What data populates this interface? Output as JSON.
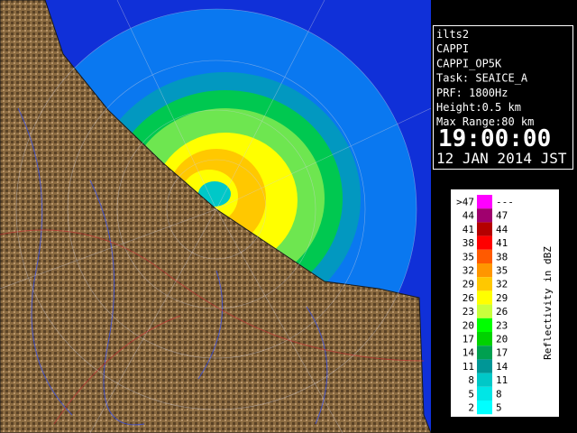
{
  "info": {
    "lines": [
      "ilts2",
      "CAPPI",
      "CAPPI_OP5K",
      "Task: SEAICE_A",
      "PRF: 1800Hz",
      "Height:0.5 km",
      "Max Range:80 km"
    ],
    "time": "19:00:00",
    "date": "12 JAN 2014 JST"
  },
  "legend": {
    "title": "Reflectivity in dBZ",
    "rows": [
      {
        "low": ">47",
        "high": "---",
        "color": "#ff00ff"
      },
      {
        "low": "44",
        "high": "47",
        "color": "#a0006e"
      },
      {
        "low": "41",
        "high": "44",
        "color": "#b40000"
      },
      {
        "low": "38",
        "high": "41",
        "color": "#ff0000"
      },
      {
        "low": "35",
        "high": "38",
        "color": "#ff5a00"
      },
      {
        "low": "32",
        "high": "35",
        "color": "#ff9600"
      },
      {
        "low": "29",
        "high": "32",
        "color": "#ffc800"
      },
      {
        "low": "26",
        "high": "29",
        "color": "#ffff00"
      },
      {
        "low": "23",
        "high": "26",
        "color": "#c8ff3c"
      },
      {
        "low": "20",
        "high": "23",
        "color": "#00ff00"
      },
      {
        "low": "17",
        "high": "20",
        "color": "#00d200"
      },
      {
        "low": "14",
        "high": "17",
        "color": "#00a050"
      },
      {
        "low": "11",
        "high": "14",
        "color": "#009696"
      },
      {
        "low": "8",
        "high": "11",
        "color": "#00c8c8"
      },
      {
        "low": "5",
        "high": "8",
        "color": "#00e6e6"
      },
      {
        "low": "2",
        "high": "5",
        "color": "#00ffff"
      }
    ]
  }
}
